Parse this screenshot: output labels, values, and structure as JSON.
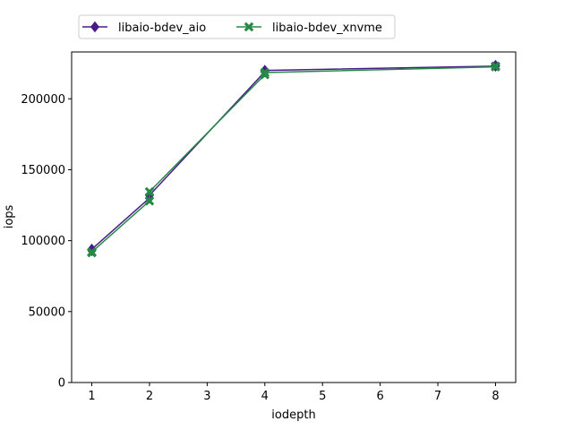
{
  "chart_data": {
    "type": "line",
    "xlabel": "iodepth",
    "ylabel": "iops",
    "xlim": [
      0.65,
      8.35
    ],
    "ylim": [
      0,
      233000
    ],
    "xticks": [
      1,
      2,
      3,
      4,
      5,
      6,
      7,
      8
    ],
    "yticks": [
      0,
      50000,
      100000,
      150000,
      200000
    ],
    "grid": false,
    "legend": {
      "placement": "top-left-outside",
      "columns": 2
    },
    "series": [
      {
        "name": "libaio-bdev_aio",
        "color": "#4b1b8a",
        "marker": "diamond",
        "x": [
          1,
          1,
          2,
          2,
          4,
          4,
          8,
          8
        ],
        "y": [
          93000,
          94000,
          130000,
          132000,
          219000,
          220000,
          223000,
          223500
        ]
      },
      {
        "name": "libaio-bdev_xnvme",
        "color": "#238b45",
        "marker": "x",
        "x": [
          1,
          1,
          2,
          2,
          4,
          4,
          8,
          8
        ],
        "y": [
          91500,
          92000,
          128000,
          134500,
          217000,
          218500,
          222500,
          223000
        ]
      }
    ]
  }
}
